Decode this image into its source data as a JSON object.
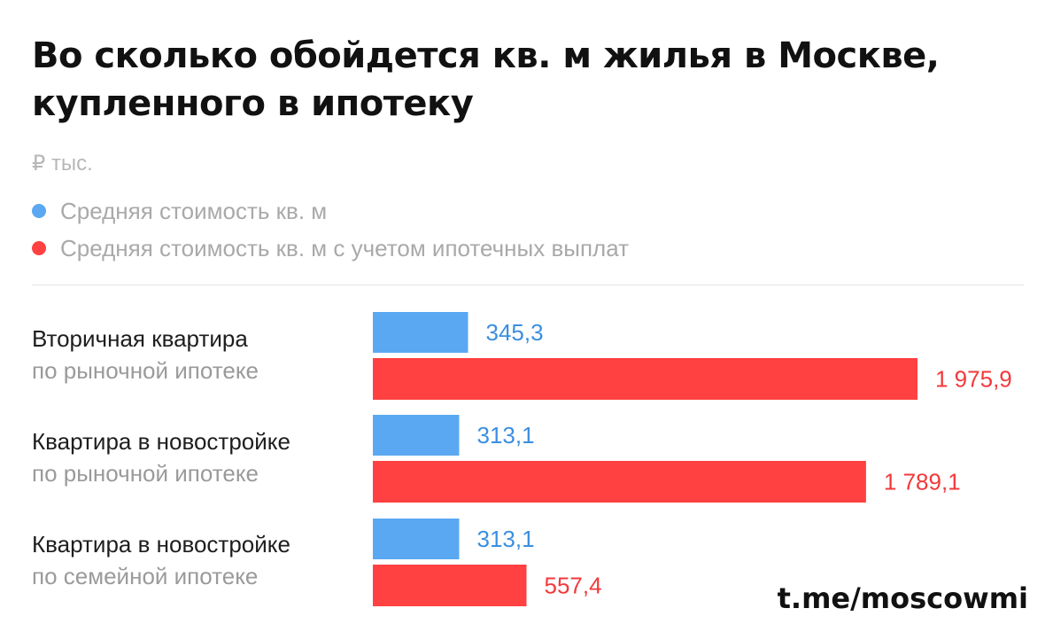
{
  "colors": {
    "series_blue": "#5aa8f2",
    "series_red": "#ff4141",
    "label_blue": "#3b8fe0",
    "label_red": "#f2393c"
  },
  "header": {
    "title": "Во сколько обойдется кв. м жилья в Москве, купленного в ипотеку",
    "unit": "₽ тыс."
  },
  "watermark": "t.me/moscowmi",
  "chart_data": {
    "type": "bar",
    "orientation": "horizontal",
    "title": "Во сколько обойдется кв. м жилья в Москве, купленного в ипотеку",
    "unit": "₽ тыс.",
    "legend_position": "top-left",
    "grid": false,
    "xlim": [
      0,
      2000
    ],
    "categories": [
      {
        "line1": "Вторичная квартира",
        "line2": "по рыночной ипотеке"
      },
      {
        "line1": "Квартира в новостройке",
        "line2": "по рыночной ипотеке"
      },
      {
        "line1": "Квартира в новостройке",
        "line2": "по семейной ипотеке"
      }
    ],
    "series": [
      {
        "name": "Средняя стоимость кв. м",
        "color": "#5aa8f2",
        "values": [
          345.3,
          313.1,
          313.1
        ],
        "labels": [
          "345,3",
          "313,1",
          "313,1"
        ]
      },
      {
        "name": "Средняя стоимость кв. м с учетом ипотечных выплат",
        "color": "#ff4141",
        "values": [
          1975.9,
          1789.1,
          557.4
        ],
        "labels": [
          "1 975,9",
          "1 789,1",
          "557,4"
        ]
      }
    ]
  }
}
